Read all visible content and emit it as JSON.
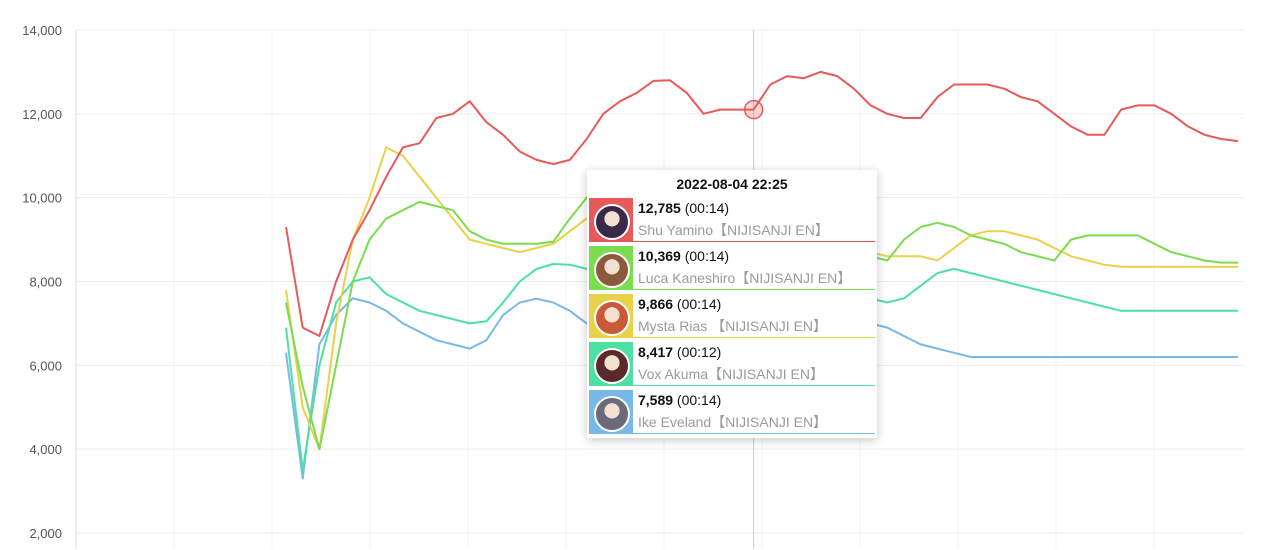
{
  "chart_data": {
    "type": "line",
    "yticks": [
      "14,000",
      "12,000",
      "10,000",
      "8,000",
      "6,000",
      "4,000",
      "2,000"
    ],
    "ylim": [
      2000,
      14000
    ],
    "grid": true,
    "hover_index": 28,
    "series": [
      {
        "color": "#e85a5a",
        "values": [
          9300,
          6900,
          6700,
          8000,
          9000,
          9700,
          10500,
          11200,
          11300,
          11900,
          12000,
          12300,
          11800,
          11500,
          11100,
          10900,
          10800,
          10900,
          11400,
          12000,
          12300,
          12500,
          12785,
          12800,
          12500,
          12000,
          12100,
          12100,
          12100,
          12700,
          12900,
          12850,
          13000,
          12900,
          12600,
          12200,
          12000,
          11900,
          11900,
          12400,
          12700,
          12700,
          12700,
          12600,
          12400,
          12300,
          12000,
          11700,
          11500,
          11500,
          12100,
          12200,
          12200,
          12000,
          11700,
          11500,
          11400,
          11350
        ]
      },
      {
        "color": "#7bdc4f",
        "values": [
          7500,
          5500,
          4000,
          6000,
          8000,
          9000,
          9500,
          9700,
          9900,
          9800,
          9700,
          9200,
          9000,
          8900,
          8900,
          8900,
          8950,
          9500,
          10000,
          10100,
          10300,
          10369,
          10000,
          9500,
          9200,
          9000,
          9000,
          9100,
          9300,
          9500,
          9400,
          9300,
          9100,
          9000,
          8800,
          8600,
          8500,
          9000,
          9300,
          9400,
          9300,
          9100,
          9000,
          8900,
          8700,
          8600,
          8500,
          9000,
          9100,
          9100,
          9100,
          9100,
          8900,
          8700,
          8600,
          8500,
          8450,
          8450
        ]
      },
      {
        "color": "#e8d24a",
        "values": [
          7800,
          5000,
          4000,
          7000,
          9000,
          10000,
          11200,
          11000,
          10500,
          10000,
          9500,
          9000,
          8900,
          8800,
          8700,
          8800,
          8900,
          9200,
          9500,
          9700,
          9800,
          9866,
          9800,
          9700,
          9800,
          9700,
          9500,
          9300,
          9100,
          9400,
          9600,
          9500,
          9300,
          9100,
          8900,
          8700,
          8600,
          8600,
          8600,
          8500,
          8800,
          9100,
          9200,
          9200,
          9100,
          9000,
          8800,
          8600,
          8500,
          8400,
          8350,
          8350,
          8350,
          8350,
          8350,
          8350,
          8350,
          8350
        ]
      },
      {
        "color": "#4ee0a0",
        "values": [
          6900,
          3500,
          6000,
          7500,
          8000,
          8100,
          7700,
          7500,
          7300,
          7200,
          7100,
          7000,
          7050,
          7500,
          8000,
          8300,
          8417,
          8400,
          8300,
          8200,
          8000,
          7800,
          7500,
          7200,
          7000,
          6800,
          7500,
          8000,
          8200,
          8300,
          8200,
          8000,
          7900,
          7800,
          7700,
          7600,
          7500,
          7600,
          7900,
          8200,
          8300,
          8200,
          8100,
          8000,
          7900,
          7800,
          7700,
          7600,
          7500,
          7400,
          7300,
          7300,
          7300,
          7300,
          7300,
          7300,
          7300,
          7300
        ]
      },
      {
        "color": "#7ab8e8",
        "values": [
          6300,
          3300,
          6500,
          7200,
          7600,
          7500,
          7300,
          7000,
          6800,
          6600,
          6500,
          6400,
          6600,
          7200,
          7500,
          7589,
          7500,
          7300,
          7000,
          6800,
          6600,
          6500,
          6800,
          7200,
          7400,
          7400,
          7300,
          7100,
          6900,
          6700,
          6500,
          6400,
          6500,
          7000,
          7100,
          7000,
          6900,
          6700,
          6500,
          6400,
          6300,
          6200,
          6200,
          6200,
          6200,
          6200,
          6200,
          6200,
          6200,
          6200,
          6200,
          6200,
          6200,
          6200,
          6200,
          6200,
          6200,
          6200
        ]
      }
    ]
  },
  "tooltip": {
    "title": "2022-08-04 22:25",
    "rows": [
      {
        "value": "12,785",
        "time": "(00:14)",
        "name": "Shu Yamino【NIJISANJI EN】",
        "color": "#e85a5a",
        "avatar_bg": "#3a2a4a"
      },
      {
        "value": "10,369",
        "time": "(00:14)",
        "name": "Luca Kaneshiro【NIJISANJI EN】",
        "color": "#7bdc4f",
        "avatar_bg": "#8a5a3a"
      },
      {
        "value": "9,866",
        "time": "(00:14)",
        "name": "Mysta Rias 【NIJISANJI EN】",
        "color": "#e8d24a",
        "avatar_bg": "#c85a3a"
      },
      {
        "value": "8,417",
        "time": "(00:12)",
        "name": "Vox Akuma【NIJISANJI EN】",
        "color": "#4ee0a0",
        "avatar_bg": "#5a2a2a"
      },
      {
        "value": "7,589",
        "time": "(00:14)",
        "name": "Ike Eveland【NIJISANJI EN】",
        "color": "#7ab8e8",
        "avatar_bg": "#6a6a7a"
      }
    ]
  }
}
